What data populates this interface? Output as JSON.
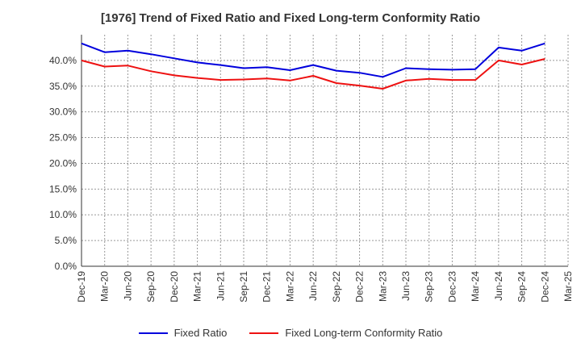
{
  "chart_data": {
    "type": "line",
    "title": "[1976]  Trend of Fixed Ratio and Fixed Long-term Conformity Ratio",
    "xlabel": "",
    "ylabel": "",
    "ylim": [
      0,
      45
    ],
    "y_ticks": [
      "0.0%",
      "5.0%",
      "10.0%",
      "15.0%",
      "20.0%",
      "25.0%",
      "30.0%",
      "35.0%",
      "40.0%"
    ],
    "x_ticks": [
      "Dec-19",
      "Mar-20",
      "Jun-20",
      "Sep-20",
      "Dec-20",
      "Mar-21",
      "Jun-21",
      "Sep-21",
      "Dec-21",
      "Mar-22",
      "Jun-22",
      "Sep-22",
      "Dec-22",
      "Mar-23",
      "Jun-23",
      "Sep-23",
      "Dec-23",
      "Mar-24",
      "Jun-24",
      "Sep-24",
      "Dec-24",
      "Mar-25"
    ],
    "grid": true,
    "legend_position": "bottom",
    "series": [
      {
        "name": "Fixed Ratio",
        "color": "#0000dd",
        "values": [
          43.3,
          41.6,
          41.9,
          41.2,
          40.4,
          39.6,
          39.1,
          38.5,
          38.7,
          38.1,
          39.1,
          38.0,
          37.6,
          36.8,
          38.5,
          38.3,
          38.2,
          38.3,
          42.5,
          41.9,
          43.3
        ]
      },
      {
        "name": "Fixed Long-term Conformity Ratio",
        "color": "#ee1111",
        "values": [
          40.0,
          38.8,
          39.0,
          37.9,
          37.1,
          36.6,
          36.2,
          36.3,
          36.5,
          36.1,
          37.0,
          35.6,
          35.1,
          34.5,
          36.1,
          36.4,
          36.2,
          36.2,
          40.0,
          39.2,
          40.3
        ]
      }
    ]
  }
}
